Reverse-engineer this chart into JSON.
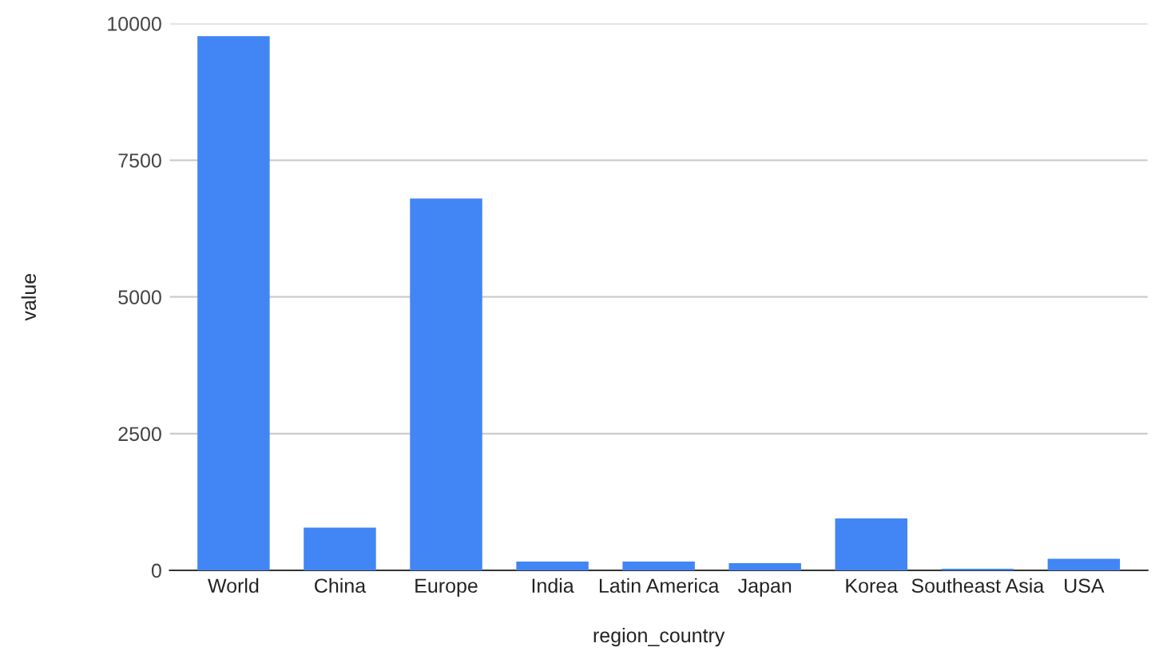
{
  "chart_data": {
    "type": "bar",
    "xlabel": "region_country",
    "ylabel": "value",
    "categories": [
      "World",
      "China",
      "Europe",
      "India",
      "Latin America",
      "Japan",
      "Korea",
      "Southeast Asia",
      "USA"
    ],
    "values": [
      9770,
      780,
      6800,
      160,
      160,
      130,
      950,
      30,
      210
    ],
    "color": "#4285f4",
    "ylim": [
      0,
      10000
    ],
    "yticks": [
      0,
      2500,
      5000,
      7500,
      10000
    ],
    "grid": "y"
  }
}
